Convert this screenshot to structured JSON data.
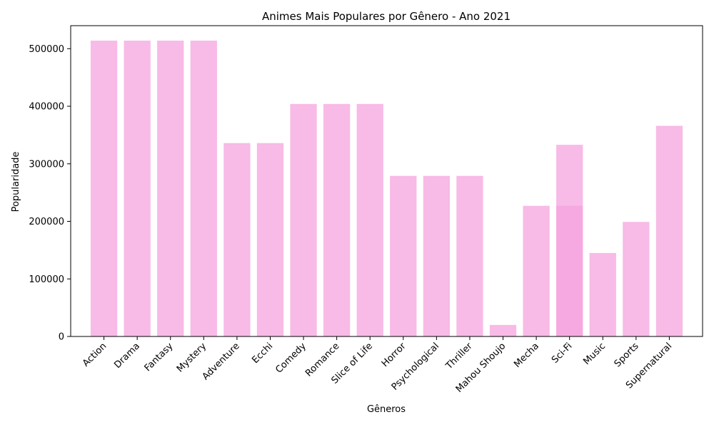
{
  "chart_data": {
    "type": "bar",
    "title": "Animes Mais Populares por Gênero - Ano 2021",
    "xlabel": "Gêneros",
    "ylabel": "Popularidade",
    "ylim": [
      0,
      540000
    ],
    "yticks": [
      0,
      100000,
      200000,
      300000,
      400000,
      500000
    ],
    "ytick_labels": [
      "0",
      "100000",
      "200000",
      "300000",
      "400000",
      "500000"
    ],
    "grid": false,
    "legend": "none",
    "bar_color": "#f5a3dd",
    "categories": [
      "Action",
      "Drama",
      "Fantasy",
      "Mystery",
      "Adventure",
      "Ecchi",
      "Comedy",
      "Romance",
      "Slice of Life",
      "Horror",
      "Psychological",
      "Thriller",
      "Mahou Shoujo",
      "Mecha",
      "Sci-Fi",
      "Music",
      "Sports",
      "Supernatural"
    ],
    "series": [
      {
        "values": [
          514000,
          514000,
          514000,
          514000,
          336000,
          336000,
          404000,
          404000,
          404000,
          279000,
          279000,
          279000,
          20000,
          227000,
          227000,
          145000,
          199000,
          366000
        ]
      },
      {
        "values": [
          null,
          null,
          null,
          null,
          null,
          null,
          null,
          null,
          null,
          null,
          null,
          null,
          null,
          null,
          333000,
          null,
          null,
          null
        ]
      }
    ]
  }
}
